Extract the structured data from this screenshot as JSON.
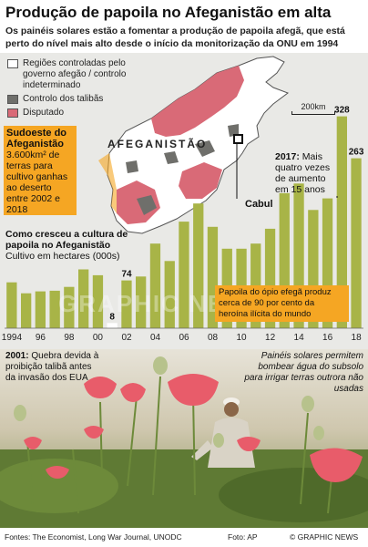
{
  "header": {
    "title": "Produção de papoila no Afeganistão em alta",
    "subtitle": "Os painéis solares estão a fomentar a produção de papoila afegã, que está perto do nível mais alto desde o início da monitorização da ONU em 1994"
  },
  "map": {
    "legend": [
      {
        "label": "Regiões controladas pelo governo afegão / controlo indeterminado",
        "color": "#ffffff"
      },
      {
        "label": "Controlo dos talibãs",
        "color": "#6f6f6b"
      },
      {
        "label": "Disputado",
        "color": "#d96a77"
      }
    ],
    "scale_label": "200km",
    "country_label": "AFEGANISTÃO",
    "capital_label": "Cabul",
    "southwest": {
      "title": "Sudoeste do Afeganistão",
      "body": "3.600km² de terras para cultivo ganhas ao deserto entre 2002 e 2018"
    }
  },
  "notes": {
    "n2017_year": "2017:",
    "n2017_text": "Mais quatro vezes de aumento em 15 anos",
    "cultiv_title": "Como cresceu a cultura de papoila no Afeganistão",
    "cultiv_unit": "Cultivo em hectares (000s)",
    "opium": "Papoila do ópio efegã produz cerca de 90 por cento da heroína ilícita do mundo",
    "n2001_year": "2001:",
    "n2001_text": "Quebra devida à proibição talibã antes da invasão dos EUA",
    "solar": "Painéis solares permitem bombear água do subsolo para irrigar terras outrora não usadas"
  },
  "chart_data": {
    "type": "bar",
    "x": [
      "1994",
      "1995",
      "1996",
      "1997",
      "1998",
      "1999",
      "2000",
      "2001",
      "2002",
      "2003",
      "2004",
      "2005",
      "2006",
      "2007",
      "2008",
      "2009",
      "2010",
      "2011",
      "2012",
      "2013",
      "2014",
      "2015",
      "2016",
      "2017",
      "2018"
    ],
    "values": [
      71,
      54,
      57,
      58,
      64,
      91,
      82,
      8,
      74,
      80,
      131,
      104,
      165,
      193,
      157,
      123,
      123,
      131,
      154,
      209,
      224,
      183,
      201,
      328,
      263
    ],
    "tick_labels": [
      "1994",
      "96",
      "98",
      "00",
      "02",
      "04",
      "06",
      "08",
      "10",
      "12",
      "14",
      "16",
      "18"
    ],
    "data_labels": [
      {
        "year": "2001",
        "label": "8"
      },
      {
        "year": "2002",
        "label": "74"
      },
      {
        "year": "2017",
        "label": "328"
      },
      {
        "year": "2018",
        "label": "263"
      }
    ],
    "ylim": [
      0,
      350
    ],
    "bar_color": "#a8b447",
    "highlight_color": "#ffffff"
  },
  "footer": {
    "sources": "Fontes: The Economist, Long War Journal, UNODC",
    "photo": "Foto: AP",
    "brand": "© GRAPHIC NEWS"
  },
  "watermark": "GRAPHIC NEWS"
}
